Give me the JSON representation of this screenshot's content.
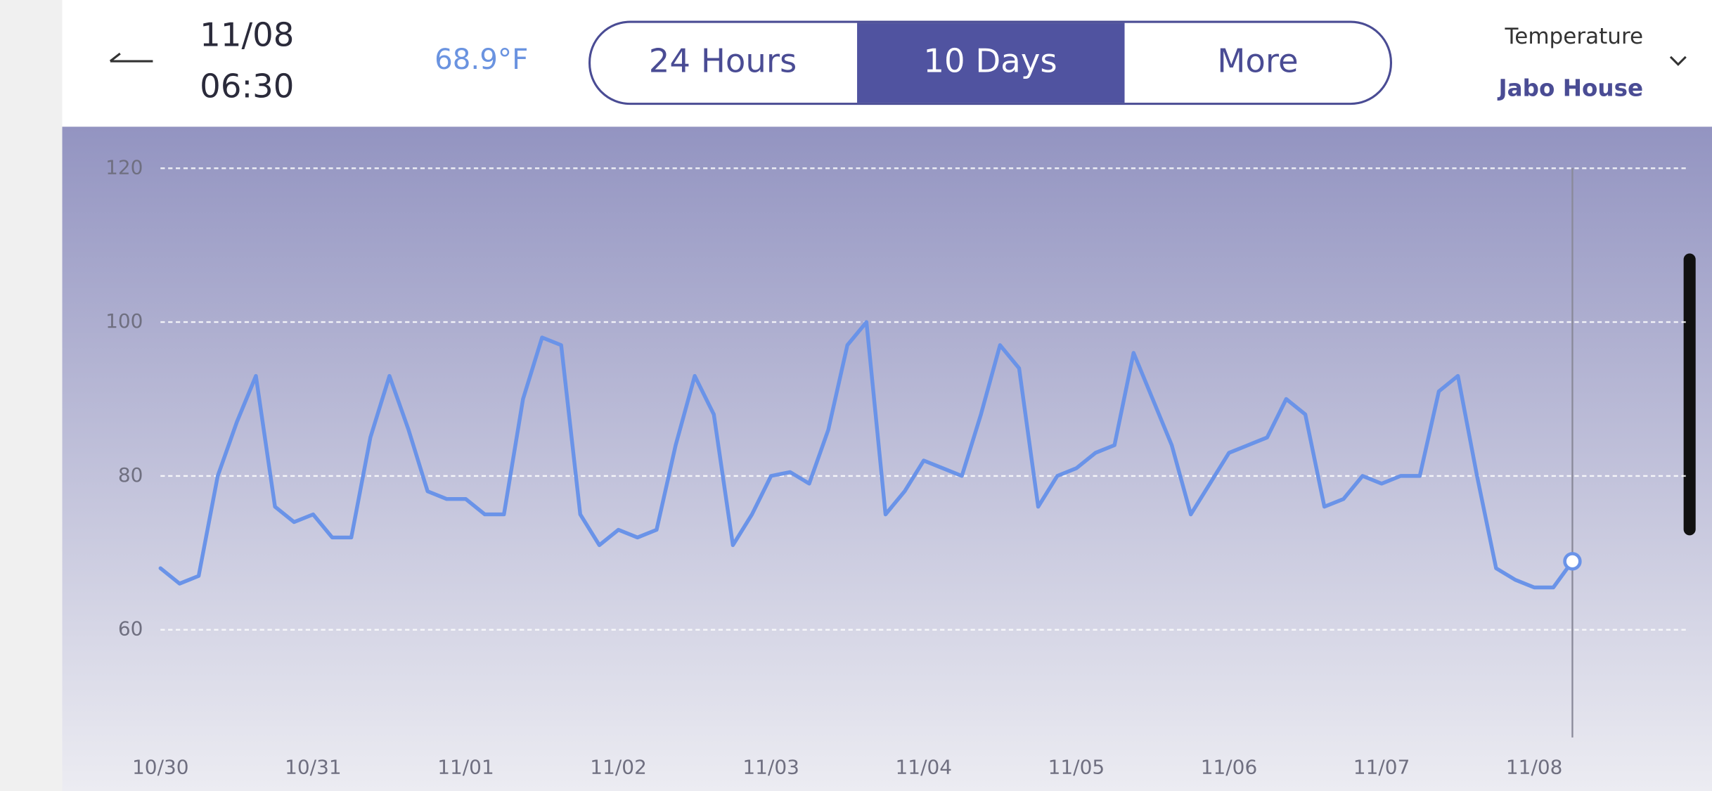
{
  "header": {
    "date": "11/08",
    "time": "06:30",
    "reading": "68.9°F",
    "tabs": [
      "24 Hours",
      "10 Days",
      "More"
    ],
    "metric": "Temperature",
    "location": "Jabo House"
  },
  "chart_data": {
    "type": "line",
    "color": "#6a93e8",
    "categories": [
      "10/30",
      null,
      null,
      null,
      null,
      null,
      null,
      null,
      "10/31",
      null,
      null,
      null,
      null,
      null,
      null,
      null,
      "11/01",
      null,
      null,
      null,
      null,
      null,
      null,
      null,
      "11/02",
      null,
      null,
      null,
      null,
      null,
      null,
      null,
      "11/03",
      null,
      null,
      null,
      null,
      null,
      null,
      null,
      "11/04",
      null,
      null,
      null,
      null,
      null,
      null,
      null,
      "11/05",
      null,
      null,
      null,
      null,
      null,
      null,
      null,
      "11/06",
      null,
      null,
      null,
      null,
      null,
      null,
      null,
      "11/07",
      null,
      null,
      null,
      null,
      null,
      null,
      null,
      "11/08",
      null,
      null
    ],
    "values": [
      68,
      66,
      67,
      80,
      87,
      93,
      76,
      74,
      75,
      72,
      72,
      85,
      93,
      86,
      78,
      77,
      77,
      75,
      75,
      90,
      98,
      97,
      75,
      71,
      73,
      72,
      73,
      84,
      93,
      88,
      71,
      75,
      80,
      80.5,
      79,
      86,
      97,
      100,
      75,
      78,
      82,
      81,
      80,
      88,
      97,
      94,
      76,
      80,
      81,
      83,
      84,
      96,
      90,
      84,
      75,
      79,
      83,
      84,
      85,
      90,
      88,
      76,
      77,
      80,
      79,
      80,
      80,
      91,
      93,
      80,
      68,
      66.5,
      65.5,
      65.5,
      68.9
    ],
    "ylim": [
      46,
      120
    ],
    "yticks": [
      60,
      80,
      100,
      120
    ],
    "grid": true
  }
}
